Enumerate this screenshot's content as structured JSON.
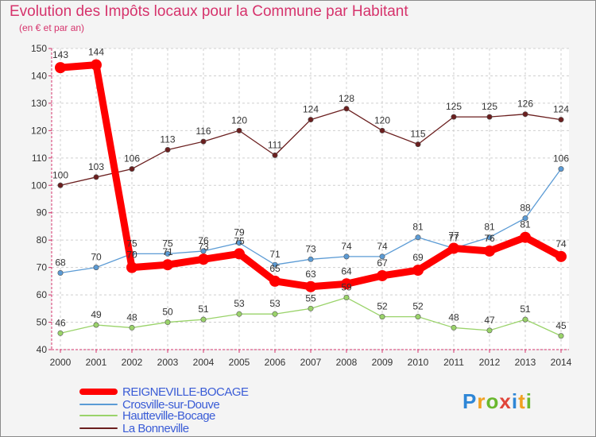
{
  "header": {
    "title": "Evolution des Impôts locaux pour la Commune par Habitant",
    "subtitle": "(en € et par an)"
  },
  "chart_data": {
    "type": "line",
    "title": "Evolution des Impôts locaux pour la Commune par Habitant",
    "subtitle": "(en € et par an)",
    "xlabel": "",
    "ylabel": "",
    "ylim": [
      40,
      150
    ],
    "yticks": [
      40,
      50,
      60,
      70,
      80,
      90,
      100,
      110,
      120,
      130,
      140,
      150
    ],
    "categories": [
      "2000",
      "2001",
      "2002",
      "2003",
      "2004",
      "2005",
      "2006",
      "2007",
      "2008",
      "2009",
      "2010",
      "2011",
      "2012",
      "2013",
      "2014"
    ],
    "grid": true,
    "legend_position": "bottom-left",
    "series": [
      {
        "name": "La Bonneville",
        "color": "#6b1f1f",
        "values": [
          100,
          103,
          106,
          113,
          116,
          120,
          111,
          124,
          128,
          120,
          115,
          125,
          125,
          126,
          124
        ]
      },
      {
        "name": "Hautteville-Bocage",
        "color": "#9ad36a",
        "values": [
          46,
          49,
          48,
          50,
          51,
          53,
          53,
          55,
          59,
          52,
          52,
          48,
          47,
          51,
          45
        ]
      },
      {
        "name": "Crosville-sur-Douve",
        "color": "#5b9bd5",
        "values": [
          68,
          70,
          75,
          75,
          76,
          79,
          71,
          73,
          74,
          74,
          81,
          77,
          81,
          88,
          106
        ]
      },
      {
        "name": "REIGNEVILLE-BOCAGE",
        "color": "#ff0000",
        "values": [
          143,
          144,
          70,
          71,
          73,
          75,
          65,
          63,
          64,
          67,
          69,
          77,
          76,
          81,
          74
        ]
      }
    ]
  },
  "legend": {
    "items": [
      {
        "label": "REIGNEVILLE-BOCAGE",
        "color": "#ff0000"
      },
      {
        "label": "Crosville-sur-Douve",
        "color": "#5b9bd5"
      },
      {
        "label": "Hautteville-Bocage",
        "color": "#9ad36a"
      },
      {
        "label": "La Bonneville",
        "color": "#6b1f1f"
      }
    ]
  },
  "logo": {
    "letters": [
      "P",
      "r",
      "o",
      "x",
      "i",
      "t",
      "i"
    ],
    "colors": [
      "#2e86d6",
      "#f0a020",
      "#6ab82e",
      "#e0453a",
      "#2e86d6",
      "#f0a020",
      "#6ab82e"
    ]
  }
}
